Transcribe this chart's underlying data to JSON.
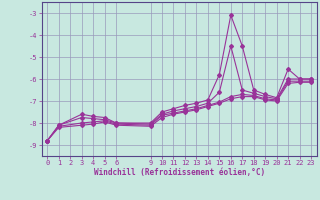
{
  "background_color": "#c8e8e0",
  "grid_color": "#9999bb",
  "line_color": "#993399",
  "xlabel": "Windchill (Refroidissement éolien,°C)",
  "ylim": [
    -9.5,
    -2.5
  ],
  "xlim": [
    -0.5,
    23.5
  ],
  "yticks": [
    -9,
    -8,
    -7,
    -6,
    -5,
    -4,
    -3
  ],
  "xticks": [
    0,
    1,
    2,
    3,
    4,
    5,
    6,
    9,
    10,
    11,
    12,
    13,
    14,
    15,
    16,
    17,
    18,
    19,
    20,
    21,
    22,
    23
  ],
  "lines": [
    {
      "x": [
        0,
        1,
        3,
        4,
        5,
        6,
        9,
        10,
        11,
        12,
        13,
        14,
        15,
        16,
        17,
        18,
        19,
        20,
        21,
        22,
        23
      ],
      "y": [
        -8.8,
        -8.1,
        -7.6,
        -7.7,
        -7.75,
        -8.0,
        -8.0,
        -7.5,
        -7.35,
        -7.2,
        -7.1,
        -6.95,
        -5.8,
        -3.1,
        -4.5,
        -6.5,
        -6.7,
        -6.85,
        -5.55,
        -6.0,
        -6.0
      ]
    },
    {
      "x": [
        0,
        1,
        3,
        4,
        5,
        6,
        9,
        10,
        11,
        12,
        13,
        14,
        15,
        16,
        17,
        18,
        19,
        20,
        21,
        22,
        23
      ],
      "y": [
        -8.8,
        -8.1,
        -7.75,
        -7.8,
        -7.85,
        -8.0,
        -8.05,
        -7.6,
        -7.45,
        -7.35,
        -7.25,
        -7.1,
        -6.6,
        -4.5,
        -6.5,
        -6.65,
        -6.8,
        -6.9,
        -6.0,
        -6.0,
        -6.0
      ]
    },
    {
      "x": [
        0,
        1,
        3,
        4,
        5,
        6,
        9,
        10,
        11,
        12,
        13,
        14,
        15,
        16,
        17,
        18,
        19,
        20,
        21,
        22,
        23
      ],
      "y": [
        -8.8,
        -8.15,
        -8.0,
        -7.95,
        -7.9,
        -8.05,
        -8.1,
        -7.65,
        -7.55,
        -7.45,
        -7.35,
        -7.2,
        -7.05,
        -6.8,
        -6.7,
        -6.75,
        -6.9,
        -6.95,
        -6.1,
        -6.1,
        -6.1
      ]
    },
    {
      "x": [
        0,
        1,
        3,
        4,
        5,
        6,
        9,
        10,
        11,
        12,
        13,
        14,
        15,
        16,
        17,
        18,
        19,
        20,
        21,
        22,
        23
      ],
      "y": [
        -8.8,
        -8.2,
        -8.1,
        -8.05,
        -7.95,
        -8.1,
        -8.15,
        -7.75,
        -7.6,
        -7.5,
        -7.4,
        -7.25,
        -7.1,
        -6.9,
        -6.8,
        -6.8,
        -6.95,
        -7.0,
        -6.2,
        -6.15,
        -6.15
      ]
    }
  ]
}
